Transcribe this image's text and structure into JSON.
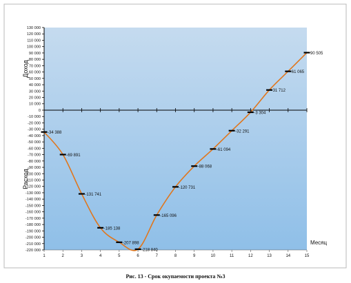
{
  "caption": "Рис. 13 - Срок окупаемости проекта №3",
  "chart_data": {
    "type": "line",
    "xlabel": "Месяц",
    "ylabel_top": "Доход",
    "ylabel_bottom": "Расход",
    "x": [
      1,
      2,
      3,
      4,
      5,
      6,
      7,
      8,
      9,
      10,
      11,
      12,
      13,
      14,
      15
    ],
    "values": [
      -34388,
      -69891,
      -131741,
      -185138,
      -207898,
      -218840,
      -165096,
      -120731,
      -88068,
      -61094,
      -32291,
      -3304,
      31712,
      61065,
      90505
    ],
    "data_labels": [
      "-34 388",
      "-69 891",
      "-131 741",
      "-185 138",
      "-207 898",
      "-218 840",
      "-165 096",
      "-120 731",
      "-88 068",
      "-61 094",
      "-32 291",
      "-3 304",
      "31 712",
      "61 065",
      "90 505"
    ],
    "ylim": [
      -220000,
      130000
    ],
    "ytick_step": 10000,
    "y_tick_labels": [
      "130 000",
      "120 000",
      "110 000",
      "100 000",
      "90 000",
      "80 000",
      "70 000",
      "60 000",
      "50 000",
      "40 000",
      "30 000",
      "20 000",
      "10 000",
      "0",
      "-10 000",
      "-20 000",
      "-30 000",
      "-40 000",
      "-50 000",
      "-60 000",
      "-70 000",
      "-80 000",
      "-90 000",
      "-100 000",
      "-110 000",
      "-120 000",
      "-130 000",
      "-140 000",
      "-150 000",
      "-160 000",
      "-170 000",
      "-180 000",
      "-190 000",
      "-200 000",
      "-210 000",
      "-220 000"
    ],
    "x_tick_labels": [
      "1",
      "2",
      "3",
      "4",
      "5",
      "6",
      "7",
      "8",
      "9",
      "10",
      "11",
      "12",
      "13",
      "14",
      "15"
    ],
    "grid": false,
    "colors": {
      "plot_bg_top": "#c5dbef",
      "plot_bg_bottom": "#8fbfe8",
      "line": "#e0761c",
      "marker": "#000000",
      "axis": "#000000"
    }
  }
}
